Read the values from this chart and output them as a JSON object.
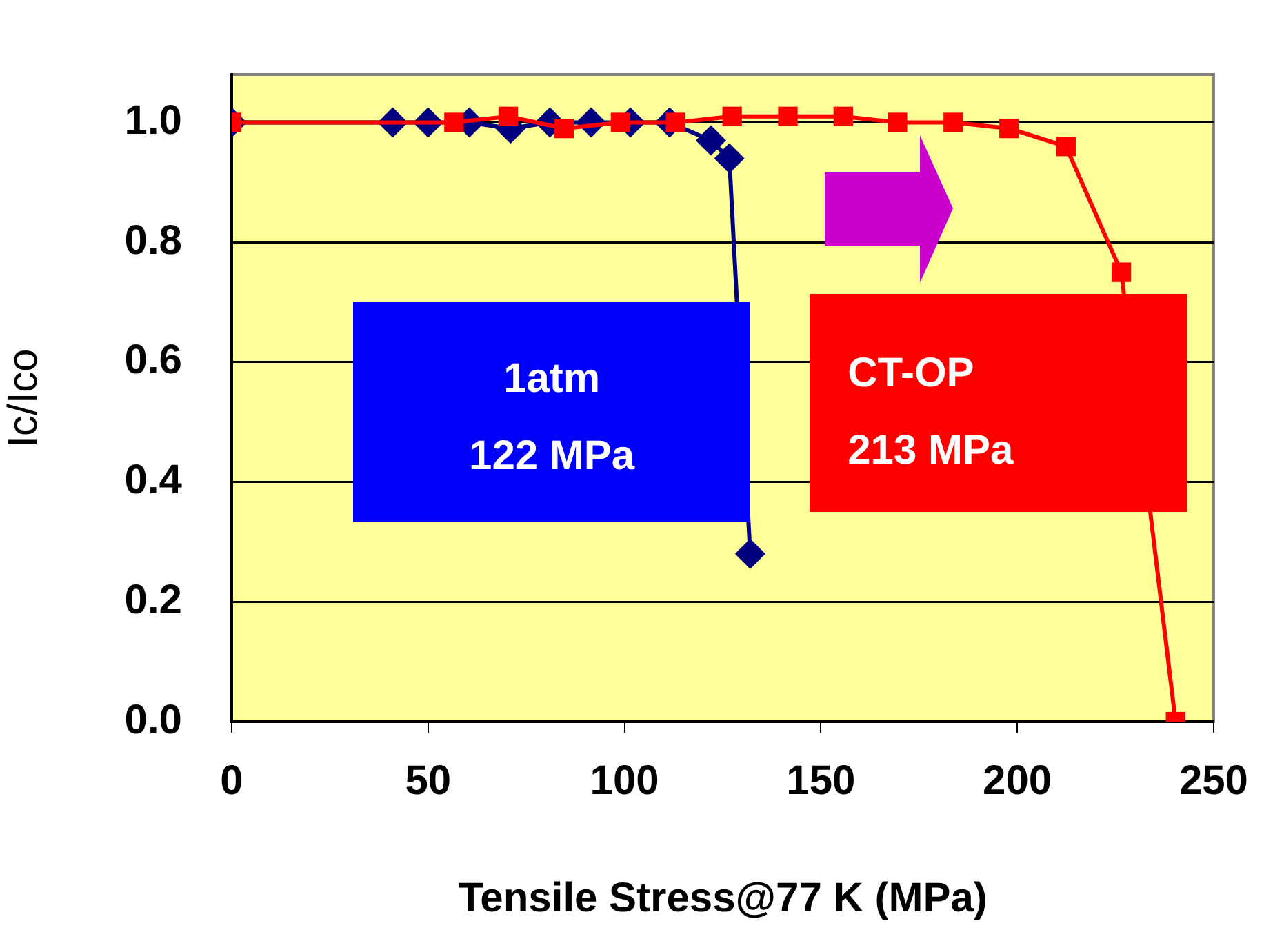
{
  "chart_data": {
    "type": "line",
    "xlabel": "Tensile Stress@77 K (MPa)",
    "ylabel": "Ic/Ico",
    "xlim": [
      0,
      250
    ],
    "xticks": [
      0,
      50,
      100,
      150,
      200,
      250
    ],
    "ylim": [
      0,
      1.08
    ],
    "yticks": [
      {
        "value": 0,
        "label": "0.0"
      },
      {
        "value": 0.2,
        "label": "0.2"
      },
      {
        "value": 0.4,
        "label": "0.4"
      },
      {
        "value": 0.6,
        "label": "0.6"
      },
      {
        "value": 0.8,
        "label": "0.8"
      },
      {
        "value": 1,
        "label": "1.0"
      }
    ],
    "grid": "y",
    "line_style": "solid",
    "series": [
      {
        "color": "#000080",
        "marker": "diamond",
        "x": [
          0,
          41,
          50,
          60.5,
          71,
          81,
          91.5,
          101.5,
          111.5,
          122,
          126.7,
          132
        ],
        "values": [
          1,
          1,
          1,
          1,
          0.99,
          1,
          1,
          1,
          1,
          0.97,
          0.94,
          0.28
        ]
      },
      {
        "color": "#ff0000",
        "marker": "square",
        "x": [
          0,
          56.6,
          70.4,
          84.6,
          99,
          113,
          127.4,
          141.6,
          155.7,
          169.5,
          183.7,
          197.9,
          212.4,
          226.5,
          240.3
        ],
        "values": [
          1,
          1,
          1.01,
          0.99,
          1,
          1,
          1.01,
          1.01,
          1.01,
          1,
          1,
          0.99,
          0.96,
          0.75,
          0
        ]
      }
    ],
    "annotations": [
      "1atm\n122 MPa",
      "CT-OP\n213 MPa"
    ]
  }
}
